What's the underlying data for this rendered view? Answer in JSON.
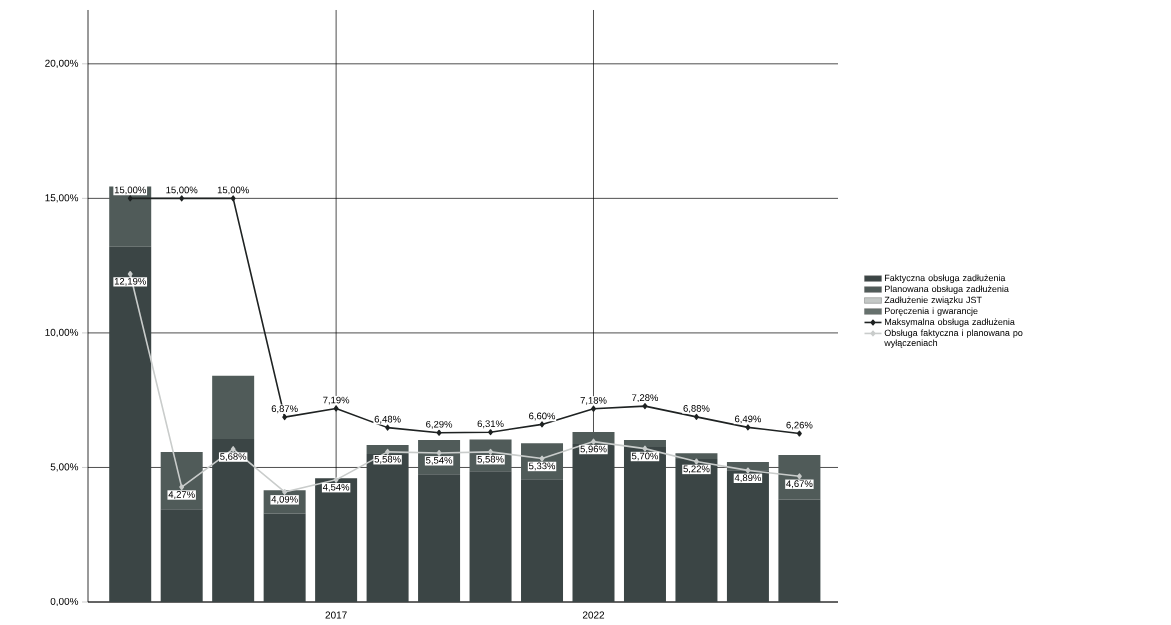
{
  "chart_data": {
    "type": "bar",
    "stacked": true,
    "categories": [
      null,
      null,
      null,
      null,
      "2017",
      null,
      null,
      null,
      null,
      "2022",
      null,
      null,
      null,
      null
    ],
    "ylim": [
      0,
      22
    ],
    "yticks": [
      {
        "value": 0,
        "label": "0,00%"
      },
      {
        "value": 5,
        "label": "5,00%"
      },
      {
        "value": 10,
        "label": "10,00%"
      },
      {
        "value": 15,
        "label": "15,00%"
      },
      {
        "value": 20,
        "label": "20,00%"
      }
    ],
    "grid": true,
    "legend": "right",
    "marker": "diamond",
    "series": [
      {
        "name": "Faktyczna obsługa zadłużenia",
        "color": "#3b4545",
        "values": [
          13.2,
          3.45,
          6.06,
          3.29,
          4.6,
          5.5,
          4.75,
          4.86,
          4.56,
          5.87,
          5.76,
          5.31,
          4.9,
          3.81
        ]
      },
      {
        "name": "Planowana obsługa zadłużenia",
        "color": "#505b59",
        "values": [
          2.24,
          2.12,
          2.35,
          0.86,
          0,
          0.33,
          1.27,
          1.18,
          1.34,
          0.45,
          0.26,
          0.22,
          0.3,
          1.65
        ]
      },
      {
        "name": "Zadłużenie związku JST",
        "color": "#c4c8c6",
        "values": [
          null,
          null,
          null,
          null,
          null,
          null,
          null,
          null,
          null,
          null,
          null,
          null,
          null,
          null
        ]
      },
      {
        "name": "Poręczenia i gwarancje",
        "color": "#66716d",
        "values": [
          null,
          null,
          null,
          null,
          null,
          null,
          null,
          null,
          null,
          null,
          null,
          null,
          null,
          null
        ]
      },
      {
        "name": "Maksymalna obsługa zadłużenia",
        "type": "line",
        "color": "#1e2222",
        "values": [
          15.0,
          15.0,
          15.0,
          6.87,
          7.19,
          6.48,
          6.29,
          6.31,
          6.6,
          7.18,
          7.28,
          6.88,
          6.49,
          6.26
        ],
        "value_labels": [
          "15,00%",
          "15,00%",
          "15,00%",
          "6,87%",
          "7,19%",
          "6,48%",
          "6,29%",
          "6,31%",
          "6,60%",
          "7,18%",
          "7,28%",
          "6,88%",
          "6,49%",
          "6,26%"
        ]
      },
      {
        "name": "Obsługa faktyczna i planowana po wyłączeniach",
        "type": "line",
        "color": "#c9cccb",
        "values": [
          12.19,
          4.27,
          5.68,
          4.09,
          4.54,
          5.58,
          5.54,
          5.58,
          5.33,
          5.96,
          5.7,
          5.22,
          4.89,
          4.67
        ],
        "value_labels": [
          "12,19%",
          "4,27%",
          "5,68%",
          "4,09%",
          "4,54%",
          "5,58%",
          "5,54%",
          "5,58%",
          "5,33%",
          "5,96%",
          "5,70%",
          "5,22%",
          "4,89%",
          "4,67%"
        ]
      }
    ]
  }
}
